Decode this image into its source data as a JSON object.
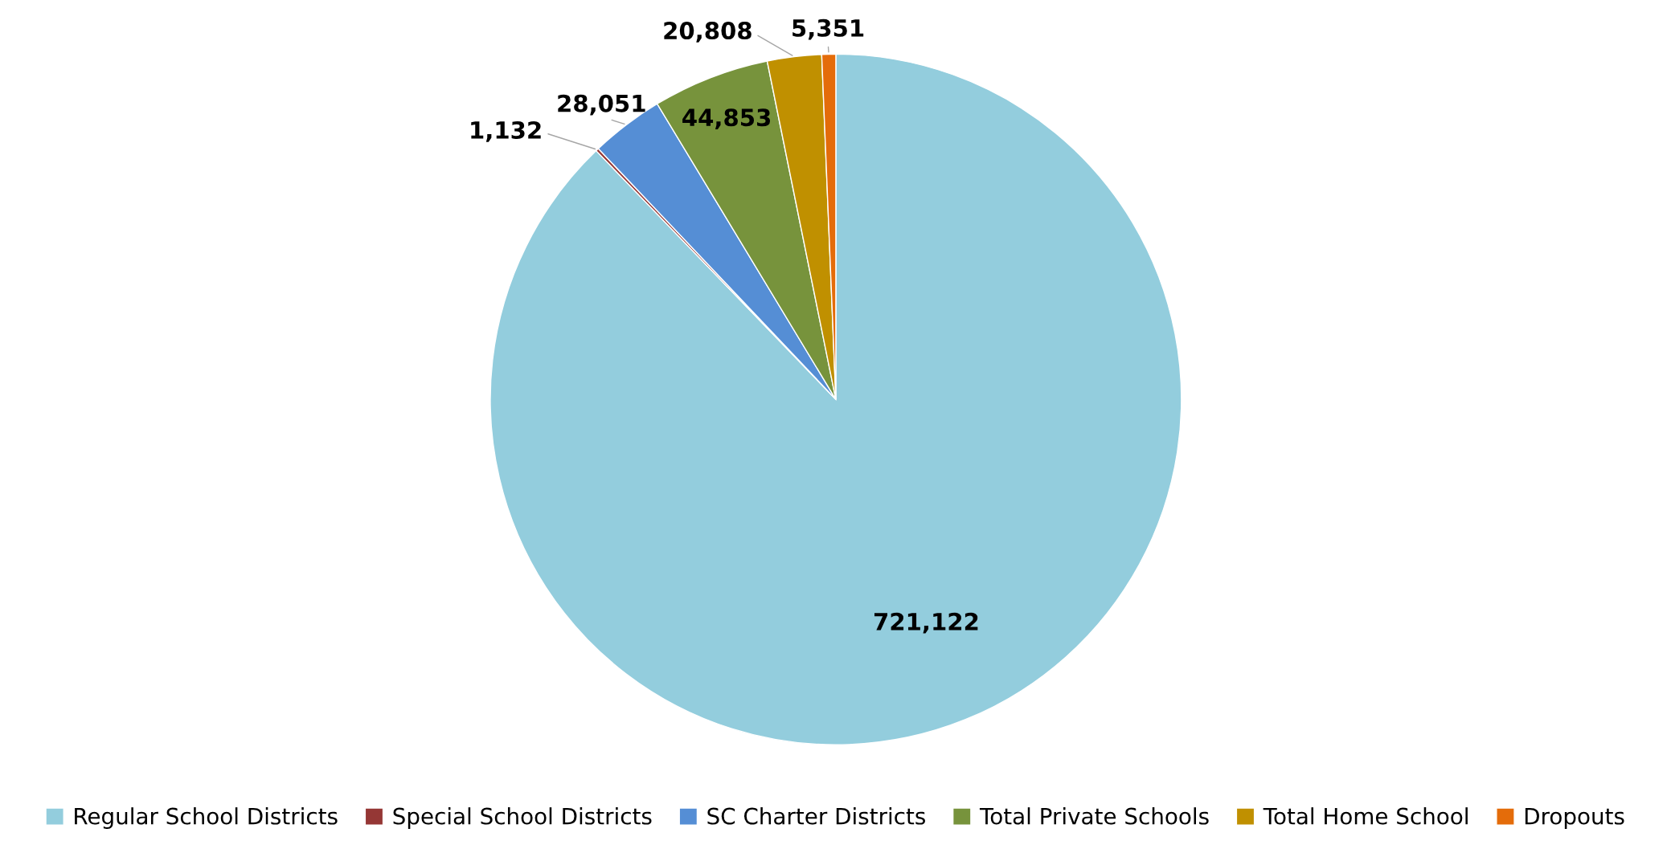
{
  "chart_data": {
    "type": "pie",
    "categories": [
      "Regular School Districts",
      "Special School Districts",
      "SC Charter Districts",
      "Total Private Schools",
      "Total Home School",
      "Dropouts"
    ],
    "values": [
      721122,
      1132,
      28051,
      44853,
      20808,
      5351
    ],
    "value_labels": [
      "721,122",
      "1,132",
      "28,051",
      "44,853",
      "20,808",
      "5,351"
    ],
    "colors": [
      "#93cddd",
      "#953735",
      "#558ed5",
      "#77933c",
      "#c09000",
      "#e46c0a"
    ],
    "legend": "bottom"
  }
}
